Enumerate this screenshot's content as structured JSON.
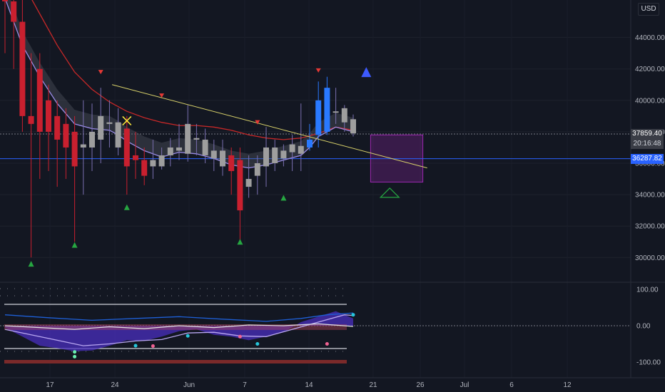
{
  "currency_badge": "USD",
  "price_tags": {
    "current_price": "37859.40",
    "countdown": "20:16:48",
    "level_price": "36287.82"
  },
  "colors": {
    "background": "#131722",
    "bear": "#c9202f",
    "bull": "#2979ff",
    "neutral": "#9e9e9e",
    "trendline": "#d9d26a",
    "sr_line": "#2962ff",
    "box": "#9c27b0",
    "ma_red": "#c62828",
    "ma_purple": "#9a8ce6"
  },
  "chart_data": [
    {
      "type": "candlestick",
      "ylim": [
        28000,
        46500
      ],
      "y_ticks": [
        "44000.00",
        "42000.00",
        "40000.00",
        "38000.00",
        "36000.00",
        "34000.00",
        "32000.00",
        "30000.00"
      ],
      "x_ticks": [
        "17",
        "24",
        "Jun",
        "7",
        "14",
        "21",
        "26",
        "Jul",
        "6",
        "12"
      ],
      "candles": [
        {
          "x": 0,
          "o": 47000,
          "h": 48500,
          "l": 43000,
          "c": 46300,
          "color": "bear"
        },
        {
          "x": 1,
          "o": 46300,
          "h": 47500,
          "l": 42000,
          "c": 45000,
          "color": "bear"
        },
        {
          "x": 2,
          "o": 45000,
          "h": 46500,
          "l": 38000,
          "c": 39000,
          "color": "bear"
        },
        {
          "x": 3,
          "o": 39000,
          "h": 43000,
          "l": 30000,
          "c": 38500,
          "color": "bear"
        },
        {
          "x": 4,
          "o": 42000,
          "h": 43000,
          "l": 35000,
          "c": 38000,
          "color": "bear"
        },
        {
          "x": 5,
          "o": 40000,
          "h": 41000,
          "l": 35500,
          "c": 38000,
          "color": "bear"
        },
        {
          "x": 6,
          "o": 39000,
          "h": 40000,
          "l": 34500,
          "c": 37500,
          "color": "bear"
        },
        {
          "x": 7,
          "o": 38500,
          "h": 39500,
          "l": 35000,
          "c": 37000,
          "color": "bear"
        },
        {
          "x": 8,
          "o": 38000,
          "h": 39000,
          "l": 31000,
          "c": 35800,
          "color": "bear"
        },
        {
          "x": 9,
          "o": 37200,
          "h": 40000,
          "l": 34000,
          "c": 37000,
          "color": "neutral"
        },
        {
          "x": 10,
          "o": 37000,
          "h": 39800,
          "l": 35500,
          "c": 38000,
          "color": "neutral"
        },
        {
          "x": 11,
          "o": 37500,
          "h": 40800,
          "l": 36000,
          "c": 39000,
          "color": "neutral"
        },
        {
          "x": 12,
          "o": 38500,
          "h": 40000,
          "l": 37000,
          "c": 38600,
          "color": "neutral"
        },
        {
          "x": 13,
          "o": 38600,
          "h": 39500,
          "l": 36500,
          "c": 37000,
          "color": "neutral"
        },
        {
          "x": 14,
          "o": 38200,
          "h": 39000,
          "l": 34000,
          "c": 35800,
          "color": "bear"
        },
        {
          "x": 15,
          "o": 36500,
          "h": 38000,
          "l": 35000,
          "c": 36200,
          "color": "bear"
        },
        {
          "x": 16,
          "o": 36200,
          "h": 37000,
          "l": 34600,
          "c": 35200,
          "color": "bear"
        },
        {
          "x": 17,
          "o": 35800,
          "h": 37500,
          "l": 35000,
          "c": 36200,
          "color": "neutral"
        },
        {
          "x": 18,
          "o": 35800,
          "h": 37000,
          "l": 35600,
          "c": 36500,
          "color": "neutral"
        },
        {
          "x": 19,
          "o": 36500,
          "h": 37600,
          "l": 35800,
          "c": 37000,
          "color": "neutral"
        },
        {
          "x": 20,
          "o": 36800,
          "h": 38500,
          "l": 36200,
          "c": 37000,
          "color": "neutral"
        },
        {
          "x": 21,
          "o": 36600,
          "h": 39700,
          "l": 36100,
          "c": 38500,
          "color": "neutral"
        },
        {
          "x": 22,
          "o": 37500,
          "h": 38500,
          "l": 36500,
          "c": 37600,
          "color": "neutral"
        },
        {
          "x": 23,
          "o": 37500,
          "h": 38200,
          "l": 36000,
          "c": 36500,
          "color": "neutral"
        },
        {
          "x": 24,
          "o": 36800,
          "h": 37500,
          "l": 35500,
          "c": 36300,
          "color": "neutral"
        },
        {
          "x": 25,
          "o": 36800,
          "h": 37500,
          "l": 35200,
          "c": 35800,
          "color": "neutral"
        },
        {
          "x": 26,
          "o": 36500,
          "h": 37000,
          "l": 34000,
          "c": 35500,
          "color": "bear"
        },
        {
          "x": 27,
          "o": 36200,
          "h": 37000,
          "l": 31000,
          "c": 33000,
          "color": "bear"
        },
        {
          "x": 28,
          "o": 35000,
          "h": 36500,
          "l": 33800,
          "c": 34500,
          "color": "neutral"
        },
        {
          "x": 29,
          "o": 35200,
          "h": 36500,
          "l": 34000,
          "c": 36000,
          "color": "neutral"
        },
        {
          "x": 30,
          "o": 35800,
          "h": 38300,
          "l": 34500,
          "c": 37000,
          "color": "neutral"
        },
        {
          "x": 31,
          "o": 36000,
          "h": 37500,
          "l": 35500,
          "c": 37000,
          "color": "neutral"
        },
        {
          "x": 32,
          "o": 36300,
          "h": 37200,
          "l": 35800,
          "c": 36800,
          "color": "neutral"
        },
        {
          "x": 33,
          "o": 36700,
          "h": 37800,
          "l": 35500,
          "c": 37200,
          "color": "neutral"
        },
        {
          "x": 34,
          "o": 36600,
          "h": 39800,
          "l": 35500,
          "c": 37100,
          "color": "neutral"
        },
        {
          "x": 35,
          "o": 37000,
          "h": 38500,
          "l": 36800,
          "c": 37500,
          "color": "bull"
        },
        {
          "x": 36,
          "o": 37800,
          "h": 41200,
          "l": 37000,
          "c": 40000,
          "color": "bull"
        },
        {
          "x": 37,
          "o": 38000,
          "h": 41500,
          "l": 37800,
          "c": 40800,
          "color": "bull"
        },
        {
          "x": 38,
          "o": 39300,
          "h": 40800,
          "l": 38500,
          "c": 39300,
          "color": "neutral"
        },
        {
          "x": 39,
          "o": 39500,
          "h": 39700,
          "l": 38000,
          "c": 38600,
          "color": "neutral"
        },
        {
          "x": 40,
          "o": 38800,
          "h": 39100,
          "l": 37700,
          "c": 37900,
          "color": "neutral"
        }
      ],
      "ma_red": [
        [
          0,
          49000
        ],
        [
          2,
          47500
        ],
        [
          4,
          45500
        ],
        [
          6,
          43500
        ],
        [
          8,
          41800
        ],
        [
          10,
          40700
        ],
        [
          12,
          39900
        ],
        [
          14,
          39300
        ],
        [
          16,
          38900
        ],
        [
          18,
          38600
        ],
        [
          20,
          38400
        ],
        [
          22,
          38400
        ],
        [
          24,
          38300
        ],
        [
          26,
          38100
        ],
        [
          28,
          37800
        ],
        [
          30,
          37600
        ],
        [
          32,
          37500
        ],
        [
          34,
          37600
        ],
        [
          36,
          37900
        ],
        [
          38,
          38300
        ],
        [
          40,
          38100
        ]
      ],
      "ma_purple": [
        [
          0,
          46500
        ],
        [
          1,
          45000
        ],
        [
          2,
          43500
        ],
        [
          4,
          41500
        ],
        [
          6,
          39800
        ],
        [
          8,
          38500
        ],
        [
          10,
          38200
        ],
        [
          12,
          38100
        ],
        [
          13,
          37800
        ],
        [
          14,
          37400
        ],
        [
          16,
          36800
        ],
        [
          18,
          36400
        ],
        [
          20,
          36700
        ],
        [
          22,
          36600
        ],
        [
          24,
          36300
        ],
        [
          26,
          35900
        ],
        [
          28,
          35700
        ],
        [
          30,
          35900
        ],
        [
          32,
          36200
        ],
        [
          34,
          36500
        ],
        [
          35,
          37000
        ],
        [
          36,
          37700
        ],
        [
          38,
          38300
        ],
        [
          40,
          38000
        ]
      ],
      "trendline": [
        [
          12.3,
          41000
        ],
        [
          48.5,
          35700
        ]
      ],
      "sr_level": 36287.82,
      "current_price": 37859.4,
      "box": {
        "x0": 42.0,
        "x1": 48.0,
        "y0": 34800,
        "y1": 37800
      },
      "up_markers": [
        [
          3,
          29600
        ],
        [
          8,
          30800
        ],
        [
          14,
          33200
        ],
        [
          27,
          31000
        ],
        [
          32,
          33800
        ],
        [
          41.5,
          41800
        ]
      ],
      "down_markers": [
        [
          11,
          41800
        ],
        [
          18,
          40300
        ],
        [
          29,
          38600
        ],
        [
          36,
          41900
        ]
      ],
      "x_marker": [
        14,
        38700
      ],
      "target_triangle": [
        44.2,
        34100
      ]
    },
    {
      "type": "oscillator",
      "ylim": [
        -100,
        100
      ],
      "y_ticks": [
        "100.00",
        "0.00",
        "-100.00"
      ],
      "fast_line": [
        [
          0,
          -5
        ],
        [
          2,
          -30
        ],
        [
          4,
          -55
        ],
        [
          6,
          -62
        ],
        [
          8,
          -70
        ],
        [
          10,
          -68
        ],
        [
          12,
          -55
        ],
        [
          14,
          -40
        ],
        [
          16,
          -42
        ],
        [
          18,
          -30
        ],
        [
          20,
          -15
        ],
        [
          22,
          -10
        ],
        [
          24,
          -25
        ],
        [
          26,
          -30
        ],
        [
          28,
          -40
        ],
        [
          30,
          -30
        ],
        [
          32,
          -18
        ],
        [
          34,
          10
        ],
        [
          36,
          25
        ],
        [
          38,
          40
        ],
        [
          40,
          20
        ]
      ],
      "slow_line": [
        [
          0,
          -10
        ],
        [
          3,
          -25
        ],
        [
          6,
          -40
        ],
        [
          9,
          -55
        ],
        [
          12,
          -50
        ],
        [
          15,
          -42
        ],
        [
          18,
          -38
        ],
        [
          21,
          -20
        ],
        [
          24,
          -18
        ],
        [
          27,
          -28
        ],
        [
          30,
          -30
        ],
        [
          33,
          -10
        ],
        [
          36,
          10
        ],
        [
          39,
          30
        ],
        [
          40,
          28
        ]
      ],
      "signal_line": [
        [
          0,
          0
        ],
        [
          4,
          -5
        ],
        [
          8,
          -10
        ],
        [
          12,
          -3
        ],
        [
          16,
          -8
        ],
        [
          20,
          0
        ],
        [
          24,
          -5
        ],
        [
          28,
          2
        ],
        [
          32,
          0
        ],
        [
          36,
          5
        ],
        [
          40,
          -2
        ]
      ],
      "upper_band": [
        [
          0,
          30
        ],
        [
          5,
          22
        ],
        [
          10,
          15
        ],
        [
          15,
          20
        ],
        [
          20,
          25
        ],
        [
          25,
          18
        ],
        [
          30,
          12
        ],
        [
          34,
          20
        ],
        [
          37,
          30
        ],
        [
          40,
          35
        ]
      ],
      "dots": [
        [
          8,
          -72
        ],
        [
          8,
          -85
        ],
        [
          15,
          -55
        ],
        [
          17,
          -56
        ],
        [
          21,
          -28
        ],
        [
          27,
          -30
        ],
        [
          29,
          -50
        ],
        [
          37,
          -50
        ],
        [
          40,
          30
        ]
      ]
    }
  ]
}
